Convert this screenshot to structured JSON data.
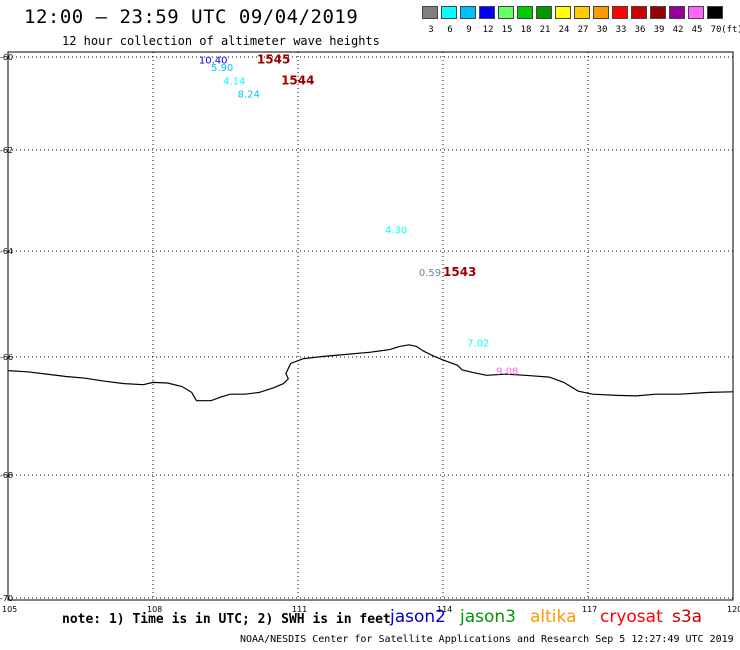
{
  "header": {
    "title": "12:00 – 23:59 UTC 09/04/2019",
    "subtitle": "12 hour collection of altimeter wave heights"
  },
  "legend": {
    "labels": [
      "3",
      "6",
      "9",
      "12",
      "15",
      "18",
      "21",
      "24",
      "27",
      "30",
      "33",
      "36",
      "39",
      "42",
      "45",
      "70"
    ],
    "unit": "(ft)",
    "colors": [
      "#7f7f7f",
      "#00ffff",
      "#00bfff",
      "#0000ff",
      "#66ff66",
      "#00cc00",
      "#009900",
      "#ffff00",
      "#ffcc00",
      "#ff9900",
      "#ff0000",
      "#cc0000",
      "#990000",
      "#990099",
      "#ff66ff",
      "#000000"
    ]
  },
  "map": {
    "lat_labels": [
      "-60",
      "-62",
      "-64",
      "-66",
      "-68",
      "-70"
    ],
    "lon_labels": [
      "105",
      "108",
      "111",
      "114",
      "117",
      "120"
    ],
    "lon_range": [
      105,
      120
    ],
    "lat_range": [
      -70,
      -60
    ],
    "coastline_lonlat": [
      [
        105.0,
        -66.23
      ],
      [
        105.4,
        -66.25
      ],
      [
        105.8,
        -66.29
      ],
      [
        106.2,
        -66.33
      ],
      [
        106.6,
        -66.36
      ],
      [
        107.0,
        -66.41
      ],
      [
        107.4,
        -66.45
      ],
      [
        107.8,
        -66.47
      ],
      [
        108.0,
        -66.43
      ],
      [
        108.3,
        -66.44
      ],
      [
        108.6,
        -66.5
      ],
      [
        108.8,
        -66.6
      ],
      [
        108.9,
        -66.74
      ],
      [
        109.2,
        -66.74
      ],
      [
        109.4,
        -66.68
      ],
      [
        109.6,
        -66.63
      ],
      [
        109.9,
        -66.63
      ],
      [
        110.2,
        -66.6
      ],
      [
        110.5,
        -66.52
      ],
      [
        110.7,
        -66.45
      ],
      [
        110.8,
        -66.37
      ],
      [
        110.75,
        -66.28
      ],
      [
        110.85,
        -66.11
      ],
      [
        111.1,
        -66.03
      ],
      [
        111.5,
        -65.99
      ],
      [
        112.0,
        -65.95
      ],
      [
        112.5,
        -65.91
      ],
      [
        112.9,
        -65.86
      ],
      [
        113.1,
        -65.8
      ],
      [
        113.3,
        -65.77
      ],
      [
        113.45,
        -65.8
      ],
      [
        113.6,
        -65.89
      ],
      [
        113.8,
        -65.98
      ],
      [
        114.0,
        -66.05
      ],
      [
        114.3,
        -66.14
      ],
      [
        114.4,
        -66.22
      ],
      [
        114.6,
        -66.26
      ],
      [
        114.9,
        -66.31
      ],
      [
        115.3,
        -66.29
      ],
      [
        115.7,
        -66.31
      ],
      [
        116.2,
        -66.34
      ],
      [
        116.5,
        -66.43
      ],
      [
        116.8,
        -66.58
      ],
      [
        117.1,
        -66.63
      ],
      [
        117.6,
        -66.65
      ],
      [
        118.0,
        -66.66
      ],
      [
        118.4,
        -66.63
      ],
      [
        118.9,
        -66.63
      ],
      [
        119.5,
        -66.6
      ],
      [
        120.0,
        -66.59
      ]
    ],
    "observations": [
      {
        "text": "10.40",
        "color": "#0000ff",
        "lon": 108.95,
        "lat": -60.05
      },
      {
        "text": "1545",
        "color": "#990000",
        "lon": 110.15,
        "lat": -60.05,
        "pass": true
      },
      {
        "text": "5.90",
        "color": "#00bfff",
        "lon": 109.2,
        "lat": -60.22
      },
      {
        "text": "4.14",
        "color": "#00ffff",
        "lon": 109.45,
        "lat": -60.5
      },
      {
        "text": "1544",
        "color": "#990000",
        "lon": 110.65,
        "lat": -60.5,
        "pass": true
      },
      {
        "text": "8.24",
        "color": "#00bfff",
        "lon": 109.75,
        "lat": -60.78
      },
      {
        "text": "4.30",
        "color": "#00ffff",
        "lon": 112.8,
        "lat": -63.57
      },
      {
        "text": "0.59",
        "color": "#7f7f7f",
        "lon": 113.5,
        "lat": -64.4
      },
      {
        "text": "1543",
        "color": "#990000",
        "lon": 114.0,
        "lat": -64.4,
        "pass": true
      },
      {
        "text": "7.02",
        "color": "#00ffff",
        "lon": 114.5,
        "lat": -65.73
      },
      {
        "text": "9.08",
        "color": "#ff66ff",
        "lon": 115.1,
        "lat": -66.23
      }
    ]
  },
  "footer": {
    "note": "note: 1) Time is in UTC; 2) SWH is in feet",
    "satellites": [
      {
        "name": "jason2",
        "color": "#0000cc"
      },
      {
        "name": "jason3",
        "color": "#009900"
      },
      {
        "name": "altika",
        "color": "#ff9900"
      },
      {
        "name": "cryosat",
        "color": "#ff0000"
      },
      {
        "name": "s3a",
        "color": "#cc0000"
      }
    ],
    "credit": "NOAA/NESDIS Center for Satellite Applications and Research   Sep  5 12:27:49 UTC 2019"
  }
}
